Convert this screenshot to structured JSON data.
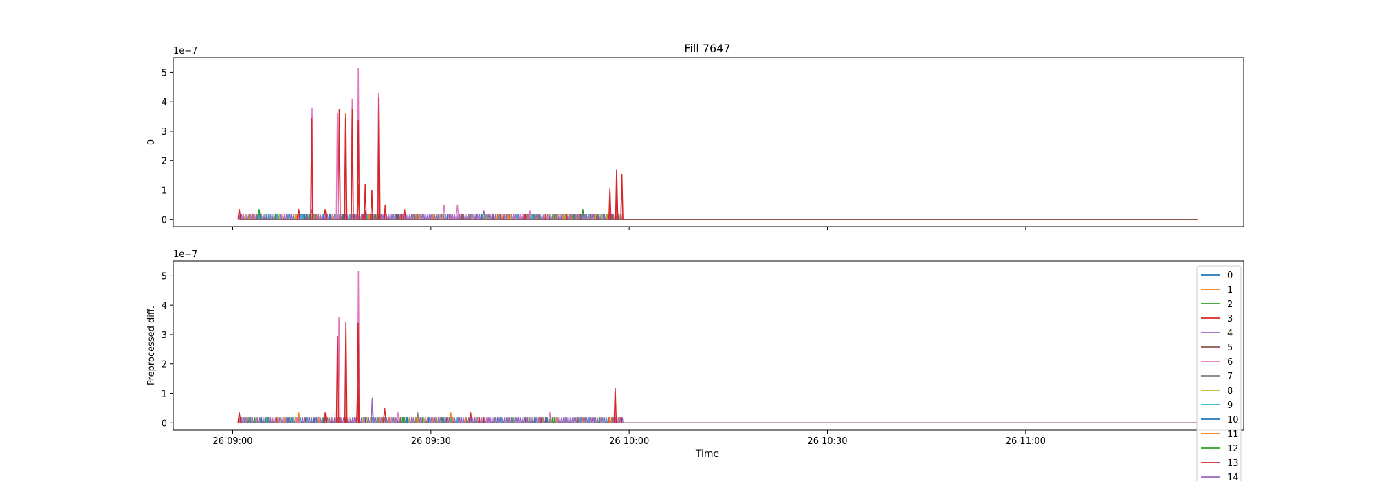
{
  "figure": {
    "title": "Fill 7647",
    "xlabel": "Time"
  },
  "legend": {
    "placement": "right",
    "entries": [
      "0",
      "1",
      "2",
      "3",
      "4",
      "5",
      "6",
      "7",
      "8",
      "9",
      "10",
      "11",
      "12",
      "13",
      "14"
    ]
  },
  "colors": [
    "#1f77b4",
    "#ff7f0e",
    "#2ca02c",
    "#d62728",
    "#9467bd",
    "#8c564b",
    "#e377c2",
    "#7f7f7f",
    "#bcbd22",
    "#17becf",
    "#1f77b4",
    "#ff7f0e",
    "#2ca02c",
    "#d62728",
    "#9467bd"
  ],
  "chart_data": [
    {
      "type": "line",
      "title": "Fill 7647",
      "ylabel": "0",
      "y_offset_label": "1e−7",
      "y_scale_exponent": -7,
      "ylim": [
        -0.25,
        5.5
      ],
      "yticks": [
        0,
        1,
        2,
        3,
        4,
        5
      ],
      "xlim": [
        "26 08:51",
        "26 11:33"
      ],
      "xticks": [
        "26 09:00",
        "26 09:30",
        "26 10:00",
        "26 10:30",
        "26 11:00"
      ],
      "show_xtick_labels": false,
      "data_range": [
        "26 09:01",
        "26 11:26"
      ],
      "activity_end": "26 09:59",
      "baseline_spikes": [
        {
          "t": "26 09:01",
          "v": 0.35,
          "s": 3
        },
        {
          "t": "26 09:04",
          "v": 0.35,
          "s": 2
        },
        {
          "t": "26 09:10",
          "v": 0.35,
          "s": 3
        },
        {
          "t": "26 09:12",
          "v": 0.35,
          "s": 5
        },
        {
          "t": "26 09:14",
          "v": 0.35,
          "s": 3
        },
        {
          "t": "26 09:20",
          "v": 0.3,
          "s": 3
        },
        {
          "t": "26 09:26",
          "v": 0.35,
          "s": 3
        },
        {
          "t": "26 09:32",
          "v": 0.5,
          "s": 6
        },
        {
          "t": "26 09:34",
          "v": 0.5,
          "s": 6
        },
        {
          "t": "26 09:38",
          "v": 0.3,
          "s": 4
        },
        {
          "t": "26 09:45",
          "v": 0.3,
          "s": 6
        },
        {
          "t": "26 09:53",
          "v": 0.35,
          "s": 2
        }
      ],
      "spikes": [
        {
          "t": "26 09:12",
          "v": 3.8,
          "s": 6
        },
        {
          "t": "26 09:12",
          "v": 3.45,
          "s": 3
        },
        {
          "t": "26 09:16",
          "v": 3.75,
          "s": 3
        },
        {
          "t": "26 09:16",
          "v": 3.6,
          "s": 6
        },
        {
          "t": "26 09:17",
          "v": 3.6,
          "s": 3
        },
        {
          "t": "26 09:17",
          "v": 3.45,
          "s": 3
        },
        {
          "t": "26 09:18",
          "v": 4.1,
          "s": 6
        },
        {
          "t": "26 09:18",
          "v": 3.75,
          "s": 3
        },
        {
          "t": "26 09:19",
          "v": 5.15,
          "s": 6
        },
        {
          "t": "26 09:19",
          "v": 3.4,
          "s": 3
        },
        {
          "t": "26 09:19",
          "v": 1.2,
          "s": 3
        },
        {
          "t": "26 09:20",
          "v": 1.2,
          "s": 3
        },
        {
          "t": "26 09:21",
          "v": 1.0,
          "s": 3
        },
        {
          "t": "26 09:22",
          "v": 4.3,
          "s": 6
        },
        {
          "t": "26 09:22",
          "v": 4.15,
          "s": 3
        },
        {
          "t": "26 09:23",
          "v": 0.5,
          "s": 3
        },
        {
          "t": "26 09:57",
          "v": 1.05,
          "s": 3
        },
        {
          "t": "26 09:58",
          "v": 1.2,
          "s": 3
        },
        {
          "t": "26 09:58",
          "v": 1.7,
          "s": 3
        },
        {
          "t": "26 09:59",
          "v": 1.55,
          "s": 3
        }
      ]
    },
    {
      "type": "line",
      "title": "",
      "ylabel": "Preprocessed diff.",
      "y_offset_label": "1e−7",
      "y_scale_exponent": -7,
      "ylim": [
        -0.25,
        5.5
      ],
      "yticks": [
        0,
        1,
        2,
        3,
        4,
        5
      ],
      "xlim": [
        "26 08:51",
        "26 11:33"
      ],
      "xticks": [
        "26 09:00",
        "26 09:30",
        "26 10:00",
        "26 10:30",
        "26 11:00"
      ],
      "show_xtick_labels": true,
      "data_range": [
        "26 09:01",
        "26 11:26"
      ],
      "activity_end": "26 09:59",
      "baseline_spikes": [
        {
          "t": "26 09:01",
          "v": 0.35,
          "s": 3
        },
        {
          "t": "26 09:10",
          "v": 0.35,
          "s": 1
        },
        {
          "t": "26 09:14",
          "v": 0.35,
          "s": 3
        },
        {
          "t": "26 09:23",
          "v": 0.5,
          "s": 3
        },
        {
          "t": "26 09:25",
          "v": 0.35,
          "s": 6
        },
        {
          "t": "26 09:28",
          "v": 0.35,
          "s": 7
        },
        {
          "t": "26 09:33",
          "v": 0.35,
          "s": 1
        },
        {
          "t": "26 09:36",
          "v": 0.35,
          "s": 3
        },
        {
          "t": "26 09:48",
          "v": 0.35,
          "s": 6
        }
      ],
      "spikes": [
        {
          "t": "26 09:16",
          "v": 3.6,
          "s": 6
        },
        {
          "t": "26 09:16",
          "v": 2.95,
          "s": 3
        },
        {
          "t": "26 09:17",
          "v": 3.45,
          "s": 3
        },
        {
          "t": "26 09:19",
          "v": 5.15,
          "s": 6
        },
        {
          "t": "26 09:19",
          "v": 3.4,
          "s": 3
        },
        {
          "t": "26 09:19",
          "v": 1.2,
          "s": 3
        },
        {
          "t": "26 09:21",
          "v": 0.85,
          "s": 4
        },
        {
          "t": "26 09:58",
          "v": 1.2,
          "s": 3
        }
      ]
    }
  ]
}
